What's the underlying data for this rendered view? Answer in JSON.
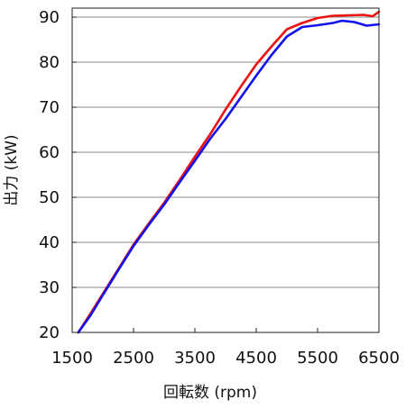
{
  "chart_data": {
    "type": "line",
    "xlabel": "回転数 (rpm)",
    "ylabel": "出力 (kW)",
    "xlim": [
      1500,
      6500
    ],
    "ylim": [
      20,
      92
    ],
    "xticks": [
      1500,
      2500,
      3500,
      4500,
      5500,
      6500
    ],
    "yticks": [
      20,
      30,
      40,
      50,
      60,
      70,
      80,
      90
    ],
    "grid": "horizontal",
    "legend": "none",
    "series": [
      {
        "color": "#ee1111",
        "x": [
          1600,
          1800,
          2000,
          2250,
          2500,
          2750,
          3000,
          3250,
          3500,
          3750,
          4000,
          4250,
          4500,
          4750,
          5000,
          5250,
          5500,
          5750,
          6000,
          6250,
          6400,
          6500
        ],
        "y": [
          20,
          24.2,
          28.6,
          34,
          39.5,
          44.2,
          48.8,
          53.8,
          59,
          64,
          69.5,
          74.6,
          79.5,
          83.5,
          87.3,
          88.7,
          89.8,
          90.3,
          90.4,
          90.5,
          90.2,
          91.2
        ]
      },
      {
        "color": "#1111ee",
        "x": [
          1600,
          1800,
          2000,
          2250,
          2500,
          2750,
          3000,
          3250,
          3500,
          3750,
          4000,
          4250,
          4500,
          4750,
          5000,
          5250,
          5500,
          5750,
          5900,
          6100,
          6300,
          6500
        ],
        "y": [
          20,
          23.8,
          28.3,
          33.8,
          39.2,
          43.9,
          48.4,
          53.3,
          58.1,
          63,
          67.4,
          72.2,
          77,
          81.6,
          85.7,
          87.8,
          88.2,
          88.7,
          89.2,
          88.9,
          88.1,
          88.4
        ]
      }
    ]
  }
}
